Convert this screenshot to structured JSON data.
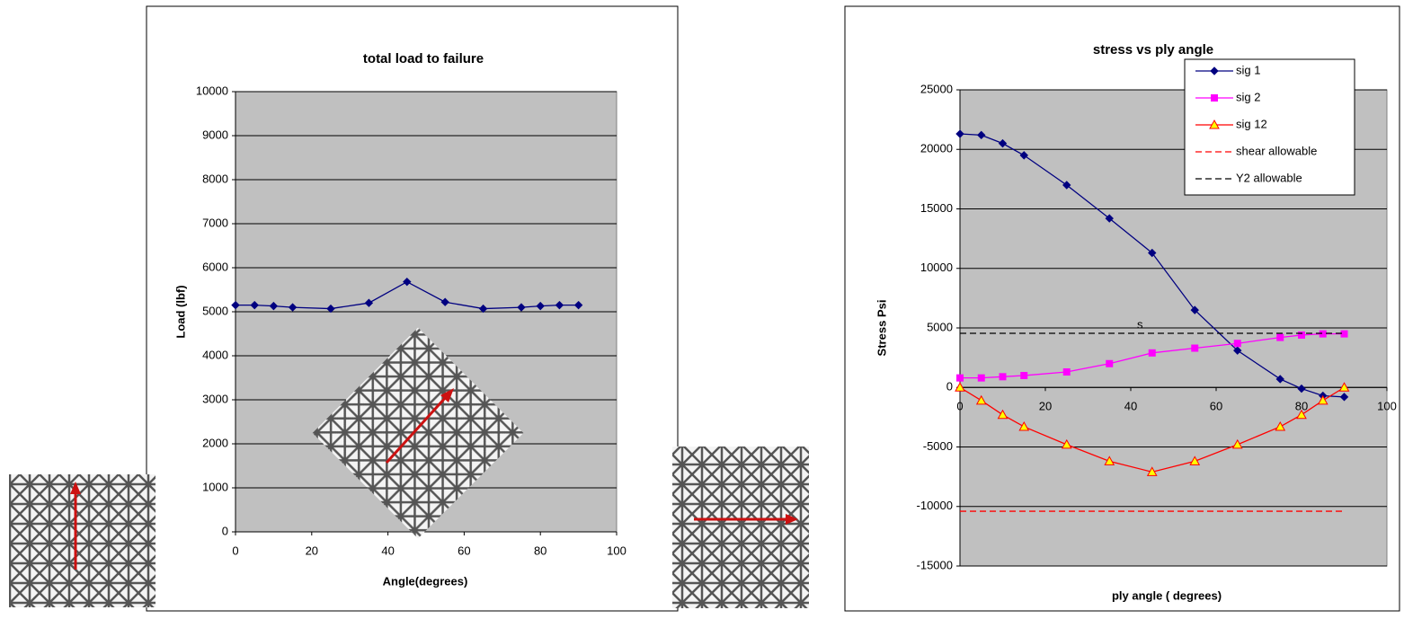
{
  "chart_data": [
    {
      "type": "line",
      "title": "total load to failure",
      "x_label": "Angle(degrees)",
      "y_label": "Load (lbf)",
      "x": [
        0,
        5,
        10,
        15,
        25,
        35,
        45,
        55,
        65,
        75,
        80,
        85,
        90
      ],
      "values": [
        5150,
        5150,
        5130,
        5100,
        5070,
        5200,
        5680,
        5220,
        5070,
        5100,
        5130,
        5150,
        5150
      ],
      "color": "#000080",
      "marker": "diamond",
      "xlim": [
        0,
        100
      ],
      "xticks": [
        0,
        20,
        40,
        60,
        80,
        100
      ],
      "ylim": [
        0,
        10000
      ],
      "yticks": [
        0,
        1000,
        2000,
        3000,
        4000,
        5000,
        6000,
        7000,
        8000,
        9000,
        10000
      ],
      "grid": true,
      "plot_background": "#c0c0c0"
    },
    {
      "type": "line",
      "title": "stress vs ply angle",
      "x_label": "ply angle ( degrees)",
      "y_label": "Stress Psi",
      "annotation": "s",
      "x": [
        0,
        5,
        10,
        15,
        25,
        35,
        45,
        55,
        65,
        75,
        80,
        85,
        90
      ],
      "series": [
        {
          "name": "sig 1",
          "color": "#000080",
          "marker": "diamond",
          "values": [
            21300,
            21200,
            20500,
            19500,
            17000,
            14200,
            11300,
            6500,
            3100,
            700,
            -100,
            -700,
            -800
          ]
        },
        {
          "name": "sig 2",
          "color": "#ff00ff",
          "marker": "square",
          "values": [
            800,
            800,
            900,
            1000,
            1300,
            2000,
            2900,
            3300,
            3700,
            4200,
            4400,
            4500,
            4500
          ]
        },
        {
          "name": "sig 12",
          "color": "#ff0000",
          "marker": "triangle",
          "marker_fill": "#ffff00",
          "values": [
            0,
            -1100,
            -2300,
            -3300,
            -4800,
            -6200,
            -7100,
            -6200,
            -4800,
            -3300,
            -2300,
            -1100,
            0
          ]
        },
        {
          "name": "shear allowable",
          "color": "#ff0000",
          "dash": true,
          "x": [
            0,
            90
          ],
          "values": [
            -10400,
            -10400
          ]
        },
        {
          "name": "Y2 allowable",
          "color": "#000000",
          "dash": true,
          "x": [
            0,
            90
          ],
          "values": [
            4550,
            4550
          ]
        }
      ],
      "xlim": [
        0,
        100
      ],
      "xticks": [
        0,
        20,
        40,
        60,
        80,
        100
      ],
      "ylim": [
        -15000,
        25000
      ],
      "yticks": [
        -15000,
        -10000,
        -5000,
        0,
        5000,
        10000,
        15000,
        20000,
        25000
      ],
      "grid": true,
      "plot_background": "#c0c0c0",
      "legend": "upper right"
    }
  ]
}
